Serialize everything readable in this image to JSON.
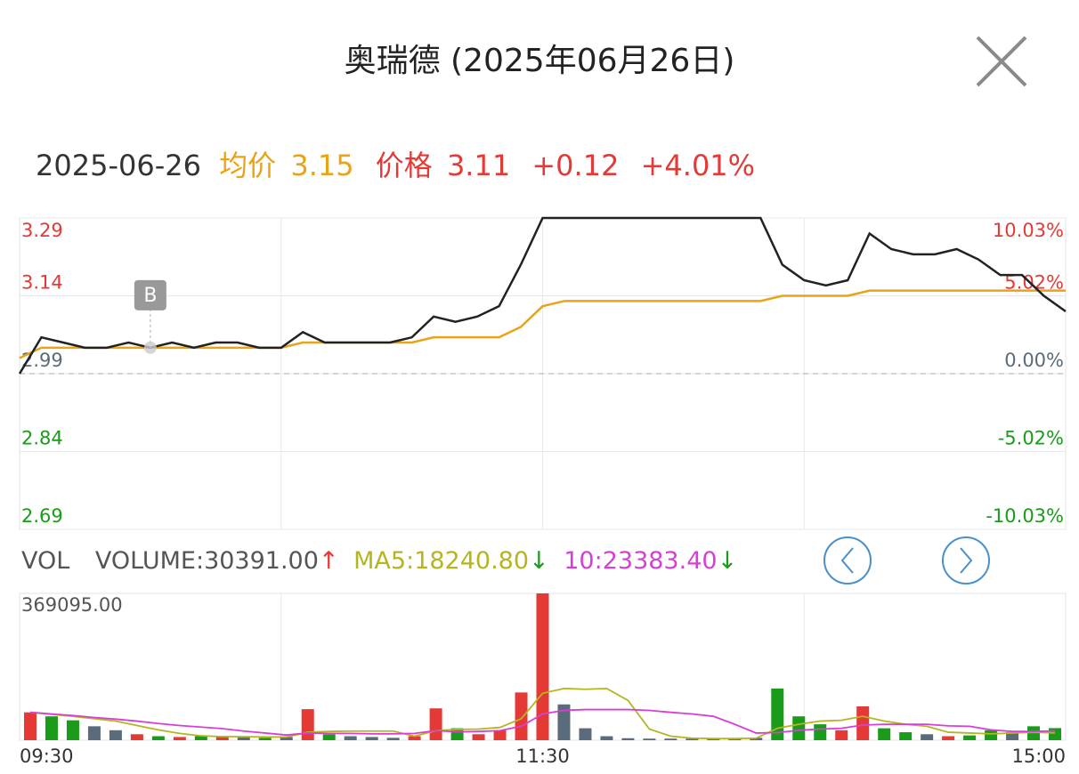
{
  "title": "奥瑞德 (2025年06月26日)",
  "chart_data": [
    {
      "type": "line",
      "date": "2025-06-26",
      "categories": [
        null,
        null,
        null,
        null,
        null,
        null,
        null,
        null,
        null,
        null,
        null,
        null,
        null,
        null,
        null,
        null,
        null,
        null,
        null,
        null,
        null,
        null,
        null,
        null,
        null,
        null,
        null,
        null,
        null,
        null,
        null,
        null,
        null,
        null,
        null,
        null,
        null,
        null,
        null,
        null,
        null,
        null,
        null,
        null,
        null,
        null,
        null,
        null,
        null
      ],
      "series": [
        {
          "name": "价格",
          "color": "#222222",
          "current": 3.11,
          "change": {
            "value": 0.12,
            "label": "+0.12"
          },
          "change_pct": {
            "value": 4.01,
            "label": "+4.01%"
          },
          "values": [
            2.99,
            3.06,
            3.05,
            3.04,
            3.04,
            3.05,
            3.04,
            3.05,
            3.04,
            3.05,
            3.05,
            3.04,
            3.04,
            3.07,
            3.05,
            3.05,
            3.05,
            3.05,
            3.06,
            3.1,
            3.09,
            3.1,
            3.12,
            3.2,
            3.29,
            3.29,
            3.29,
            3.29,
            3.29,
            3.29,
            3.29,
            3.29,
            3.29,
            3.29,
            3.29,
            3.2,
            3.17,
            3.16,
            3.17,
            3.26,
            3.23,
            3.22,
            3.22,
            3.23,
            3.21,
            3.18,
            3.18,
            3.14,
            3.11
          ]
        },
        {
          "name": "均价",
          "color": "#e8a317",
          "current": 3.15,
          "values": [
            3.02,
            3.04,
            3.04,
            3.04,
            3.04,
            3.04,
            3.04,
            3.04,
            3.04,
            3.04,
            3.04,
            3.04,
            3.04,
            3.05,
            3.05,
            3.05,
            3.05,
            3.05,
            3.05,
            3.06,
            3.06,
            3.06,
            3.06,
            3.08,
            3.12,
            3.13,
            3.13,
            3.13,
            3.13,
            3.13,
            3.13,
            3.13,
            3.13,
            3.13,
            3.13,
            3.14,
            3.14,
            3.14,
            3.14,
            3.15,
            3.15,
            3.15,
            3.15,
            3.15,
            3.15,
            3.15,
            3.15,
            3.15,
            3.15
          ]
        }
      ],
      "baseline": 2.99,
      "ylim": [
        2.69,
        3.29
      ],
      "yticks": [
        3.29,
        3.14,
        2.99,
        2.84,
        2.69
      ],
      "y2lim": [
        -10.03,
        10.03
      ],
      "y2ticks": [
        {
          "value": 10.03,
          "label": "10.03%"
        },
        {
          "value": 5.02,
          "label": "5.02%"
        },
        {
          "value": 0,
          "label": "0.00%"
        },
        {
          "value": -5.02,
          "label": "-5.02%"
        },
        {
          "value": -10.03,
          "label": "-10.03%"
        }
      ],
      "annotation": {
        "text": "B",
        "index": 6
      },
      "grid": true
    },
    {
      "type": "bar",
      "indicator": "VOL",
      "separator": ":",
      "categories": [
        "09:30",
        null,
        null,
        null,
        null,
        null,
        null,
        null,
        null,
        null,
        null,
        null,
        null,
        null,
        null,
        null,
        null,
        null,
        null,
        null,
        null,
        null,
        null,
        null,
        "11:30",
        null,
        null,
        null,
        null,
        null,
        null,
        null,
        null,
        null,
        null,
        null,
        null,
        null,
        null,
        null,
        null,
        null,
        null,
        null,
        null,
        null,
        null,
        null,
        "15:00"
      ],
      "series": [
        {
          "name": "VOLUME",
          "current": {
            "value": 30391,
            "label": "30391.00"
          },
          "trend": "↑",
          "trend_color": "#e53935",
          "values": [
            70000,
            60000,
            50000,
            35000,
            25000,
            15000,
            10000,
            8000,
            10000,
            8000,
            7000,
            6000,
            8000,
            78000,
            15000,
            10000,
            8000,
            6000,
            10000,
            80000,
            30000,
            15000,
            25000,
            120000,
            369095,
            90000,
            30000,
            10000,
            5000,
            4000,
            4000,
            4000,
            4000,
            5000,
            6000,
            130000,
            60000,
            40000,
            25000,
            85000,
            30000,
            20000,
            15000,
            10000,
            12000,
            25000,
            20000,
            35000,
            30391
          ],
          "colors": [
            "#e53935",
            "#1a9c1a",
            "#1a9c1a",
            "#5a6b7b",
            "#5a6b7b",
            "#e53935",
            "#1a9c1a",
            "#e53935",
            "#1a9c1a",
            "#e53935",
            "#5a6b7b",
            "#1a9c1a",
            "#5a6b7b",
            "#e53935",
            "#1a9c1a",
            "#5a6b7b",
            "#5a6b7b",
            "#5a6b7b",
            "#e53935",
            "#e53935",
            "#1a9c1a",
            "#e53935",
            "#e53935",
            "#e53935",
            "#e53935",
            "#5a6b7b",
            "#5a6b7b",
            "#5a6b7b",
            "#5a6b7b",
            "#5a6b7b",
            "#5a6b7b",
            "#5a6b7b",
            "#5a6b7b",
            "#5a6b7b",
            "#5a6b7b",
            "#1a9c1a",
            "#1a9c1a",
            "#1a9c1a",
            "#e53935",
            "#e53935",
            "#1a9c1a",
            "#1a9c1a",
            "#5a6b7b",
            "#e53935",
            "#1a9c1a",
            "#1a9c1a",
            "#5a6b7b",
            "#1a9c1a",
            "#1a9c1a"
          ]
        },
        {
          "name": "MA5",
          "color": "#b5b520",
          "current": {
            "value": 18240.8,
            "label": "18240.80"
          },
          "trend": "↓",
          "trend_color": "#1a9c1a",
          "values": [
            70000,
            65000,
            60000,
            54000,
            48000,
            37000,
            26000,
            17000,
            11000,
            9000,
            9000,
            8000,
            8000,
            20000,
            22000,
            23000,
            23000,
            23000,
            10000,
            24000,
            27000,
            28000,
            32000,
            54000,
            118000,
            130000,
            128000,
            130000,
            100000,
            28000,
            10000,
            5000,
            4000,
            4000,
            5000,
            30000,
            40000,
            48000,
            50000,
            60000,
            48000,
            40000,
            35000,
            20000,
            18000,
            16000,
            18000,
            20000,
            18240.8
          ]
        },
        {
          "name": "10",
          "color": "#d63fd6",
          "current": {
            "value": 23383.4,
            "label": "23383.40"
          },
          "trend": "↓",
          "trend_color": "#1a9c1a",
          "values": [
            70000,
            66000,
            62000,
            57000,
            53000,
            48000,
            42000,
            37000,
            33000,
            29000,
            23000,
            18000,
            13000,
            18000,
            17000,
            17000,
            16000,
            16000,
            17000,
            24000,
            21000,
            22000,
            24000,
            35000,
            66000,
            75000,
            77000,
            77000,
            77000,
            75000,
            70000,
            66000,
            60000,
            40000,
            18000,
            19000,
            25000,
            28000,
            30000,
            38000,
            40000,
            40000,
            40000,
            36000,
            35000,
            26000,
            22000,
            22000,
            23383.4
          ]
        }
      ],
      "ylim": [
        0,
        369095
      ],
      "yticks": [
        {
          "value": 369095,
          "label": "369095.00"
        }
      ]
    }
  ]
}
